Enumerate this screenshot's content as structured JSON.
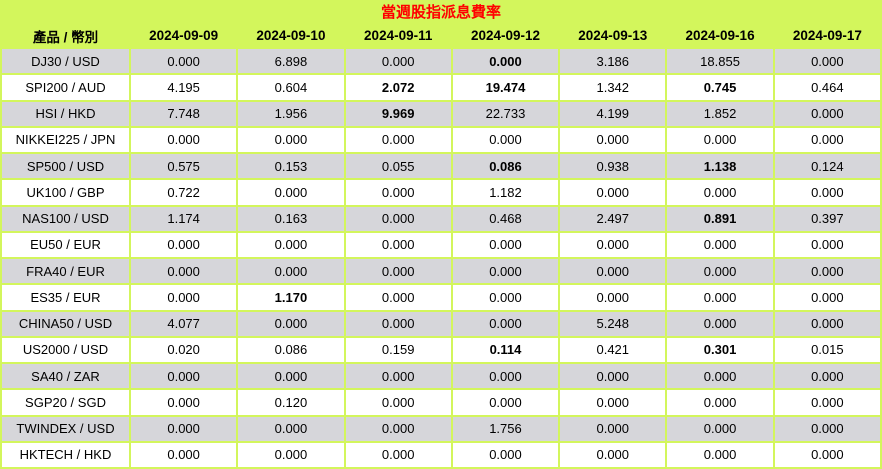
{
  "title": "當週股指派息費率",
  "colors": {
    "background_lime": "#d3f65c",
    "odd_row_gray": "#d6d6da",
    "even_row_white": "#ffffff",
    "title_red": "#ff0000",
    "text_black": "#000000"
  },
  "table": {
    "product_header": "產品 / 幣別",
    "date_headers": [
      "2024-09-09",
      "2024-09-10",
      "2024-09-11",
      "2024-09-12",
      "2024-09-13",
      "2024-09-16",
      "2024-09-17"
    ],
    "rows": [
      {
        "product": "DJ30 / USD",
        "values": [
          "0.000",
          "6.898",
          "0.000",
          "0.000",
          "3.186",
          "18.855",
          "0.000"
        ],
        "bold": [
          false,
          false,
          false,
          true,
          false,
          false,
          false
        ]
      },
      {
        "product": "SPI200 / AUD",
        "values": [
          "4.195",
          "0.604",
          "2.072",
          "19.474",
          "1.342",
          "0.745",
          "0.464"
        ],
        "bold": [
          false,
          false,
          true,
          true,
          false,
          true,
          false
        ]
      },
      {
        "product": "HSI / HKD",
        "values": [
          "7.748",
          "1.956",
          "9.969",
          "22.733",
          "4.199",
          "1.852",
          "0.000"
        ],
        "bold": [
          false,
          false,
          true,
          false,
          false,
          false,
          false
        ]
      },
      {
        "product": "NIKKEI225 / JPN",
        "values": [
          "0.000",
          "0.000",
          "0.000",
          "0.000",
          "0.000",
          "0.000",
          "0.000"
        ],
        "bold": [
          false,
          false,
          false,
          false,
          false,
          false,
          false
        ]
      },
      {
        "product": "SP500 / USD",
        "values": [
          "0.575",
          "0.153",
          "0.055",
          "0.086",
          "0.938",
          "1.138",
          "0.124"
        ],
        "bold": [
          false,
          false,
          false,
          true,
          false,
          true,
          false
        ]
      },
      {
        "product": "UK100 / GBP",
        "values": [
          "0.722",
          "0.000",
          "0.000",
          "1.182",
          "0.000",
          "0.000",
          "0.000"
        ],
        "bold": [
          false,
          false,
          false,
          false,
          false,
          false,
          false
        ]
      },
      {
        "product": "NAS100 / USD",
        "values": [
          "1.174",
          "0.163",
          "0.000",
          "0.468",
          "2.497",
          "0.891",
          "0.397"
        ],
        "bold": [
          false,
          false,
          false,
          false,
          false,
          true,
          false
        ]
      },
      {
        "product": "EU50 / EUR",
        "values": [
          "0.000",
          "0.000",
          "0.000",
          "0.000",
          "0.000",
          "0.000",
          "0.000"
        ],
        "bold": [
          false,
          false,
          false,
          false,
          false,
          false,
          false
        ]
      },
      {
        "product": "FRA40 / EUR",
        "values": [
          "0.000",
          "0.000",
          "0.000",
          "0.000",
          "0.000",
          "0.000",
          "0.000"
        ],
        "bold": [
          false,
          false,
          false,
          false,
          false,
          false,
          false
        ]
      },
      {
        "product": "ES35 / EUR",
        "values": [
          "0.000",
          "1.170",
          "0.000",
          "0.000",
          "0.000",
          "0.000",
          "0.000"
        ],
        "bold": [
          false,
          true,
          false,
          false,
          false,
          false,
          false
        ]
      },
      {
        "product": "CHINA50 / USD",
        "values": [
          "4.077",
          "0.000",
          "0.000",
          "0.000",
          "5.248",
          "0.000",
          "0.000"
        ],
        "bold": [
          false,
          false,
          false,
          false,
          false,
          false,
          false
        ]
      },
      {
        "product": "US2000 / USD",
        "values": [
          "0.020",
          "0.086",
          "0.159",
          "0.114",
          "0.421",
          "0.301",
          "0.015"
        ],
        "bold": [
          false,
          false,
          false,
          true,
          false,
          true,
          false
        ]
      },
      {
        "product": "SA40 / ZAR",
        "values": [
          "0.000",
          "0.000",
          "0.000",
          "0.000",
          "0.000",
          "0.000",
          "0.000"
        ],
        "bold": [
          false,
          false,
          false,
          false,
          false,
          false,
          false
        ]
      },
      {
        "product": "SGP20 / SGD",
        "values": [
          "0.000",
          "0.120",
          "0.000",
          "0.000",
          "0.000",
          "0.000",
          "0.000"
        ],
        "bold": [
          false,
          false,
          false,
          false,
          false,
          false,
          false
        ]
      },
      {
        "product": "TWINDEX / USD",
        "values": [
          "0.000",
          "0.000",
          "0.000",
          "1.756",
          "0.000",
          "0.000",
          "0.000"
        ],
        "bold": [
          false,
          false,
          false,
          false,
          false,
          false,
          false
        ]
      },
      {
        "product": "HKTECH / HKD",
        "values": [
          "0.000",
          "0.000",
          "0.000",
          "0.000",
          "0.000",
          "0.000",
          "0.000"
        ],
        "bold": [
          false,
          false,
          false,
          false,
          false,
          false,
          false
        ]
      }
    ]
  }
}
